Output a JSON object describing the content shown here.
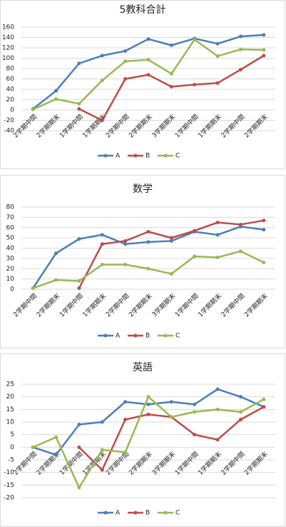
{
  "chart_data": [
    {
      "type": "line",
      "title": "5教科合計",
      "categories": [
        "2学期中間",
        "2学期期末",
        "1学期中間",
        "1学期期末",
        "2学期中間",
        "2学期期末",
        "3学期期末",
        "1学期中間",
        "1学期期末",
        "2学期中間",
        "2学期期末"
      ],
      "series": [
        {
          "name": "A",
          "color": "#4a7ebb",
          "values": [
            2,
            37,
            90,
            105,
            114,
            137,
            125,
            138,
            128,
            142,
            145
          ]
        },
        {
          "name": "B",
          "color": "#be4b48",
          "values": [
            null,
            null,
            2,
            -20,
            60,
            68,
            45,
            49,
            52,
            78,
            105
          ]
        },
        {
          "name": "C",
          "color": "#98b954",
          "values": [
            1,
            21,
            12,
            57,
            94,
            97,
            70,
            136,
            104,
            117,
            116
          ]
        }
      ],
      "ylim": [
        -40,
        160
      ],
      "yticks": [
        -40,
        -20,
        0,
        20,
        40,
        60,
        80,
        100,
        120,
        140,
        160
      ],
      "grid": true,
      "legend": "bottom"
    },
    {
      "type": "line",
      "title": "数学",
      "categories": [
        "2学期中間",
        "2学期期末",
        "1学期中間",
        "1学期期末",
        "2学期中間",
        "2学期期末",
        "3学期期末",
        "1学期中間",
        "1学期期末",
        "2学期中間",
        "2学期期末"
      ],
      "series": [
        {
          "name": "A",
          "color": "#4a7ebb",
          "values": [
            1,
            35,
            49,
            53,
            44,
            46,
            47,
            56,
            53,
            61,
            58
          ]
        },
        {
          "name": "B",
          "color": "#be4b48",
          "values": [
            null,
            null,
            1,
            44,
            47,
            56,
            50,
            57,
            65,
            63,
            67
          ]
        },
        {
          "name": "C",
          "color": "#98b954",
          "values": [
            1,
            9,
            8,
            24,
            24,
            20,
            15,
            32,
            31,
            37,
            26
          ]
        }
      ],
      "ylim": [
        0,
        80
      ],
      "yticks": [
        0,
        10,
        20,
        30,
        40,
        50,
        60,
        70,
        80
      ],
      "grid": true,
      "legend": "bottom"
    },
    {
      "type": "line",
      "title": "英語",
      "categories": [
        "2学期中間",
        "2学期期末",
        "1学期中間",
        "1学期期末",
        "2学期中間",
        "2学期期末",
        "3学期期末",
        "1学期中間",
        "1学期期末",
        "2学期中間",
        "2学期期末"
      ],
      "series": [
        {
          "name": "A",
          "color": "#4a7ebb",
          "values": [
            0,
            -3,
            9,
            10,
            18,
            17,
            18,
            17,
            23,
            20,
            16
          ]
        },
        {
          "name": "B",
          "color": "#be4b48",
          "values": [
            null,
            null,
            0,
            -9,
            11,
            13,
            12,
            5,
            3,
            11,
            16
          ]
        },
        {
          "name": "C",
          "color": "#98b954",
          "values": [
            0,
            4,
            -16,
            -1,
            -2,
            20,
            12,
            14,
            15,
            14,
            19
          ]
        }
      ],
      "ylim": [
        -20,
        25
      ],
      "yticks": [
        -20,
        -15,
        -10,
        -5,
        0,
        5,
        10,
        15,
        20,
        25
      ],
      "grid": true,
      "legend": "bottom"
    }
  ]
}
